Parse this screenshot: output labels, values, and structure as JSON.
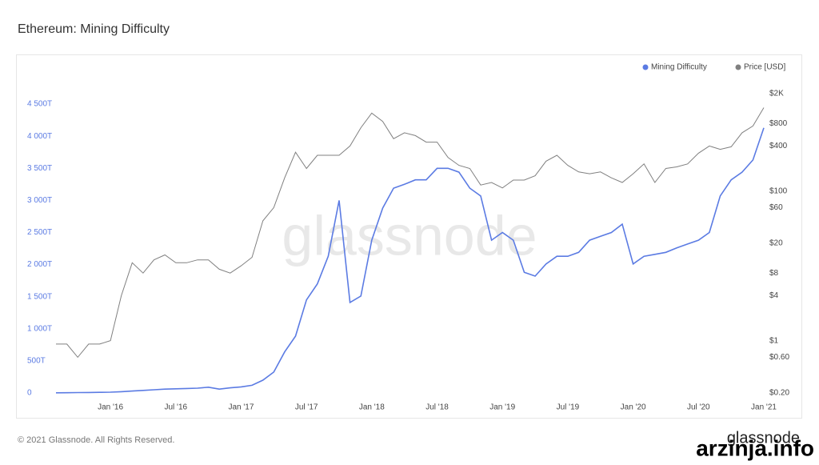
{
  "chart_data": {
    "type": "line",
    "title": "Ethereum: Mining Difficulty",
    "footer": "© 2021 Glassnode. All Rights Reserved.",
    "watermark": "glassnode",
    "logo": "glassnode",
    "overlay": "arzinja.info",
    "x": [
      "2015-08",
      "2015-09",
      "2015-10",
      "2015-11",
      "2015-12",
      "2016-01",
      "2016-02",
      "2016-03",
      "2016-04",
      "2016-05",
      "2016-06",
      "2016-07",
      "2016-08",
      "2016-09",
      "2016-10",
      "2016-11",
      "2016-12",
      "2017-01",
      "2017-02",
      "2017-03",
      "2017-04",
      "2017-05",
      "2017-06",
      "2017-07",
      "2017-08",
      "2017-09",
      "2017-10",
      "2017-11",
      "2017-12",
      "2018-01",
      "2018-02",
      "2018-03",
      "2018-04",
      "2018-05",
      "2018-06",
      "2018-07",
      "2018-08",
      "2018-09",
      "2018-10",
      "2018-11",
      "2018-12",
      "2019-01",
      "2019-02",
      "2019-03",
      "2019-04",
      "2019-05",
      "2019-06",
      "2019-07",
      "2019-08",
      "2019-09",
      "2019-10",
      "2019-11",
      "2019-12",
      "2020-01",
      "2020-02",
      "2020-03",
      "2020-04",
      "2020-05",
      "2020-06",
      "2020-07",
      "2020-08",
      "2020-09",
      "2020-10",
      "2020-11",
      "2020-12",
      "2021-01"
    ],
    "xlim": [
      "2015-08",
      "2021-01"
    ],
    "xticks": [
      {
        "value": "2016-01",
        "label": "Jan '16"
      },
      {
        "value": "2016-07",
        "label": "Jul '16"
      },
      {
        "value": "2017-01",
        "label": "Jan '17"
      },
      {
        "value": "2017-07",
        "label": "Jul '17"
      },
      {
        "value": "2018-01",
        "label": "Jan '18"
      },
      {
        "value": "2018-07",
        "label": "Jul '18"
      },
      {
        "value": "2019-01",
        "label": "Jan '19"
      },
      {
        "value": "2019-07",
        "label": "Jul '19"
      },
      {
        "value": "2020-01",
        "label": "Jan '20"
      },
      {
        "value": "2020-07",
        "label": "Jul '20"
      },
      {
        "value": "2021-01",
        "label": "Jan '21"
      }
    ],
    "ylim": [
      0,
      4663
    ],
    "yticks": [
      0,
      {
        "value": 500,
        "label": "500T"
      },
      {
        "value": 1000,
        "label": "1 000T"
      },
      {
        "value": 1500,
        "label": "1 500T"
      },
      {
        "value": 2000,
        "label": "2 000T"
      },
      {
        "value": 2500,
        "label": "2 500T"
      },
      {
        "value": 3000,
        "label": "3 000T"
      },
      {
        "value": 3500,
        "label": "3 500T"
      },
      {
        "value": 4000,
        "label": "4 000T"
      },
      {
        "value": 4500,
        "label": "4 500T"
      }
    ],
    "y2lim": [
      0.2,
      2000
    ],
    "y2log": true,
    "y2ticks": [
      {
        "value": 0.2,
        "label": "$0.20"
      },
      {
        "value": 0.6,
        "label": "$0.60"
      },
      {
        "value": 1,
        "label": "$1"
      },
      {
        "value": 4,
        "label": "$4"
      },
      {
        "value": 8,
        "label": "$8"
      },
      {
        "value": 20,
        "label": "$20"
      },
      {
        "value": 60,
        "label": "$60"
      },
      {
        "value": 100,
        "label": "$100"
      },
      {
        "value": 400,
        "label": "$400"
      },
      {
        "value": 800,
        "label": "$800"
      },
      {
        "value": 2000,
        "label": "$2K"
      }
    ],
    "legend": "top-right",
    "series": [
      {
        "name": "Mining Difficulty",
        "color": "#5b7be3",
        "axis": "y",
        "values": [
          2,
          4,
          6,
          8,
          10,
          12,
          20,
          30,
          40,
          50,
          60,
          65,
          70,
          75,
          90,
          60,
          80,
          95,
          120,
          200,
          325,
          640,
          885,
          1450,
          1700,
          2130,
          3000,
          1410,
          1510,
          2380,
          2880,
          3190,
          3250,
          3320,
          3320,
          3500,
          3500,
          3440,
          3190,
          3070,
          2380,
          2500,
          2380,
          1880,
          1820,
          2010,
          2130,
          2130,
          2190,
          2380,
          2440,
          2500,
          2630,
          2010,
          2130,
          2160,
          2190,
          2260,
          2320,
          2380,
          2500,
          3070,
          3320,
          3440,
          3630,
          4130
        ]
      },
      {
        "name": "Price [USD]",
        "color": "#808080",
        "axis": "y2",
        "values": [
          0.9,
          0.9,
          0.6,
          0.9,
          0.9,
          1.0,
          4,
          11,
          8,
          12,
          14,
          11,
          11,
          12,
          12,
          9,
          8,
          10,
          13,
          40,
          60,
          150,
          330,
          200,
          300,
          300,
          300,
          400,
          700,
          1100,
          850,
          500,
          600,
          550,
          450,
          450,
          280,
          220,
          200,
          120,
          130,
          110,
          140,
          140,
          160,
          250,
          300,
          220,
          180,
          170,
          180,
          150,
          130,
          170,
          230,
          130,
          200,
          210,
          230,
          320,
          400,
          360,
          390,
          600,
          740,
          1300
        ]
      }
    ]
  }
}
